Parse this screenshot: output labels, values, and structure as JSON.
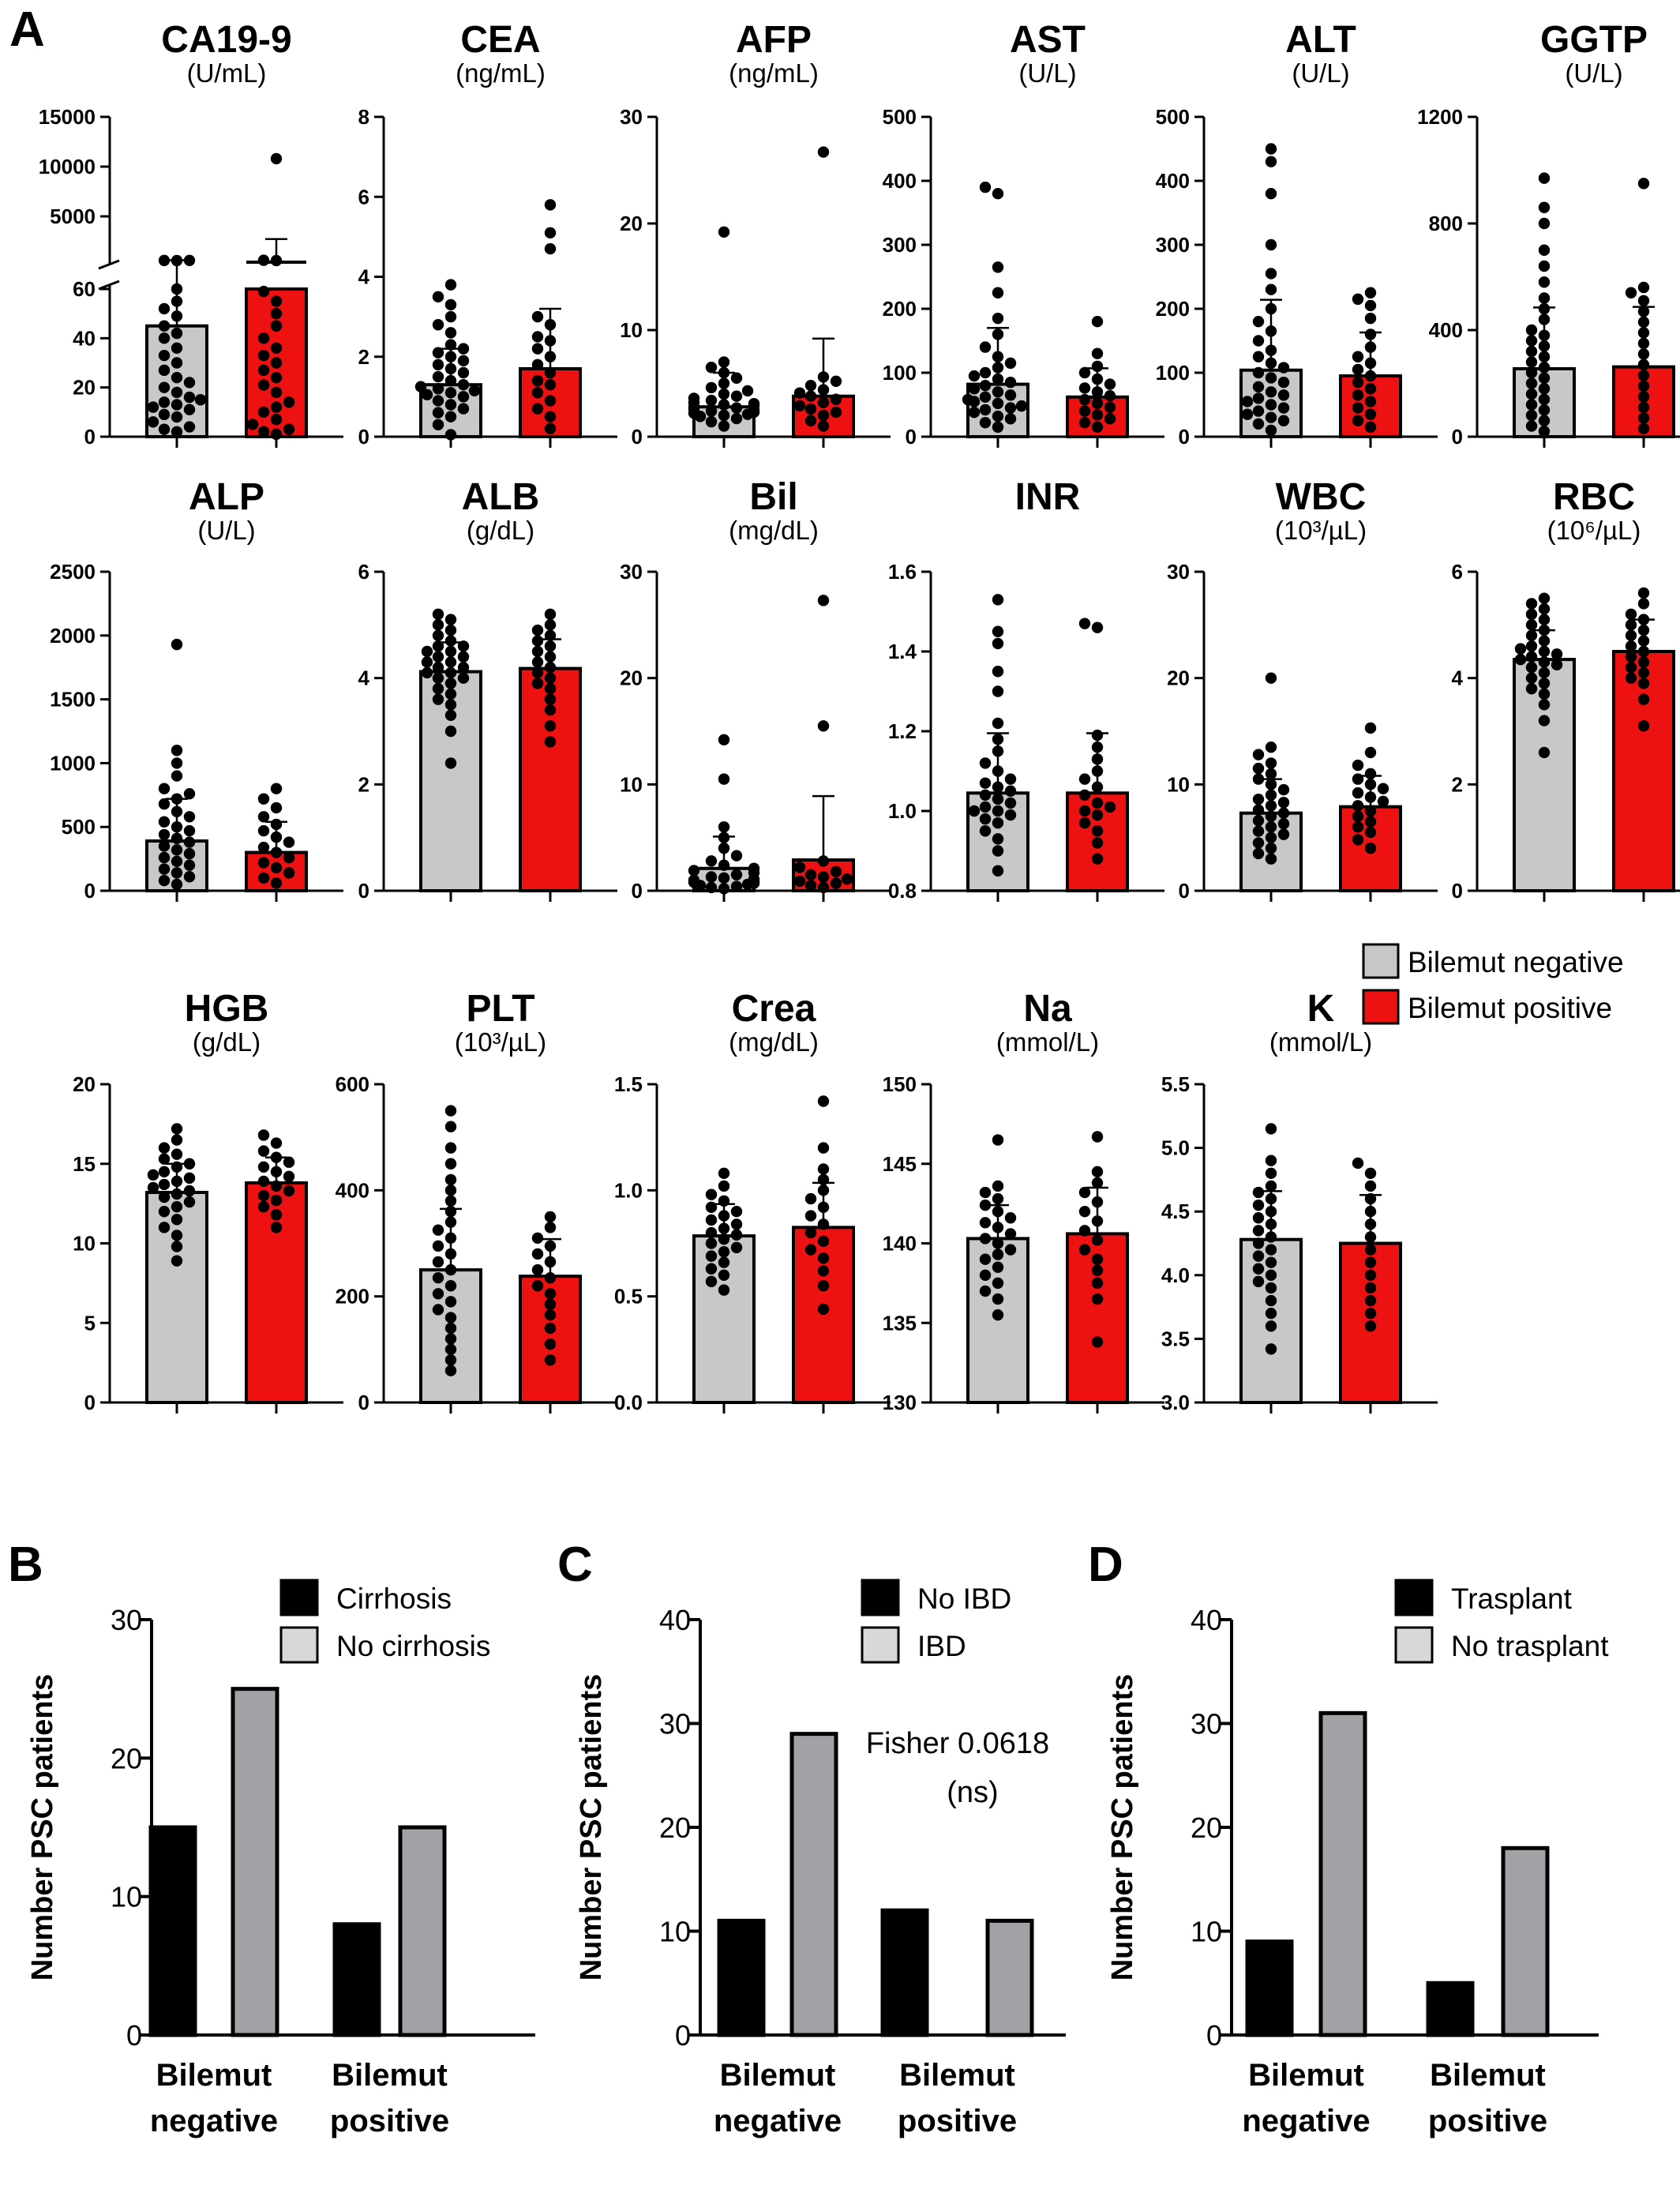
{
  "figure": {
    "panels": [
      "A",
      "B",
      "C",
      "D"
    ],
    "legend_a": [
      "Bilemut negative",
      "Bilemut positive"
    ],
    "colors": {
      "negative": "#c8c8c8",
      "positive": "#ee1111",
      "axis": "#000000",
      "dark_bar": "#000000",
      "light_bar": "#a2a2a6"
    }
  },
  "chart_data": [
    {
      "type": "bar",
      "title": "CA19-9",
      "unit": "(U/mL)",
      "categories": [
        "Bilemut negative",
        "Bilemut positive"
      ],
      "values": [
        45,
        60
      ],
      "error": [
        60,
        2400
      ],
      "axis_break": true,
      "lower_ylim": [
        0,
        60
      ],
      "lower_ticks": [
        "0",
        "20",
        "40",
        "60"
      ],
      "upper_ylim": [
        0,
        15000
      ],
      "upper_ticks": [
        "5000",
        "10000",
        "15000"
      ],
      "neg_points": [
        2,
        3,
        4,
        6,
        8,
        9,
        11,
        12,
        13,
        14,
        15,
        16,
        18,
        20,
        22,
        24,
        27,
        30,
        33,
        36,
        40,
        42,
        45,
        49,
        52,
        55,
        60,
        62,
        70,
        78
      ],
      "pos_points": [
        1,
        2,
        3,
        5,
        7,
        10,
        12,
        14,
        18,
        21,
        24,
        27,
        30,
        33,
        36,
        40,
        45,
        50,
        55,
        59,
        62,
        95,
        10800
      ]
    },
    {
      "type": "bar",
      "title": "CEA",
      "unit": "(ng/mL)",
      "categories": [
        "Bilemut negative",
        "Bilemut positive"
      ],
      "values": [
        1.3,
        1.7
      ],
      "error": [
        0.9,
        1.5
      ],
      "ylim": [
        0,
        8
      ],
      "ticks": [
        "0",
        "2",
        "4",
        "6",
        "8"
      ],
      "neg_points": [
        0.05,
        0.3,
        0.5,
        0.6,
        0.7,
        0.8,
        0.9,
        1.0,
        1.05,
        1.1,
        1.15,
        1.2,
        1.25,
        1.3,
        1.4,
        1.5,
        1.6,
        1.7,
        1.8,
        1.9,
        2.0,
        2.1,
        2.2,
        2.3,
        2.6,
        2.8,
        3.0,
        3.3,
        3.5,
        3.8
      ],
      "neg_spread": [
        0
      ],
      "pos_points": [
        0.2,
        0.5,
        0.7,
        0.9,
        1.1,
        1.3,
        1.4,
        1.6,
        1.8,
        2.0,
        2.2,
        2.4,
        2.5,
        2.8,
        3.0,
        4.7,
        5.1,
        5.8
      ]
    },
    {
      "type": "bar",
      "title": "AFP",
      "unit": "(ng/mL)",
      "categories": [
        "Bilemut negative",
        "Bilemut positive"
      ],
      "values": [
        2.8,
        3.8
      ],
      "error": [
        3.2,
        5.4
      ],
      "ylim": [
        0,
        30
      ],
      "ticks": [
        "0",
        "10",
        "20",
        "30"
      ],
      "neg_points": [
        1.0,
        1.4,
        1.7,
        1.9,
        2.0,
        2.1,
        2.2,
        2.3,
        2.4,
        2.5,
        2.6,
        2.7,
        2.8,
        2.9,
        3.0,
        3.1,
        3.2,
        3.4,
        3.6,
        3.8,
        4.0,
        4.3,
        4.6,
        5.0,
        5.5,
        6.0,
        6.5,
        7.0,
        19.2
      ],
      "pos_points": [
        1.0,
        1.5,
        2.0,
        2.3,
        2.6,
        2.9,
        3.2,
        3.5,
        3.8,
        4.1,
        4.4,
        4.8,
        5.2,
        5.6,
        26.7
      ]
    },
    {
      "type": "bar",
      "title": "AST",
      "unit": "(U/L)",
      "categories": [
        "Bilemut negative",
        "Bilemut positive"
      ],
      "values": [
        82,
        62
      ],
      "error": [
        88,
        45
      ],
      "ylim": [
        0,
        500
      ],
      "ticks": [
        "0",
        "100",
        "200",
        "300",
        "400",
        "500"
      ],
      "neg_points": [
        15,
        22,
        28,
        32,
        38,
        42,
        45,
        48,
        52,
        55,
        58,
        62,
        65,
        70,
        75,
        80,
        85,
        90,
        95,
        100,
        108,
        115,
        125,
        140,
        160,
        185,
        225,
        265,
        380,
        390
      ],
      "pos_points": [
        15,
        22,
        28,
        34,
        40,
        46,
        52,
        58,
        64,
        70,
        76,
        82,
        90,
        100,
        110,
        130,
        180
      ]
    },
    {
      "type": "bar",
      "title": "ALT",
      "unit": "(U/L)",
      "categories": [
        "Bilemut negative",
        "Bilemut positive"
      ],
      "values": [
        104,
        95
      ],
      "error": [
        110,
        68
      ],
      "ylim": [
        0,
        500
      ],
      "ticks": [
        "0",
        "100",
        "200",
        "300",
        "400",
        "500"
      ],
      "neg_points": [
        10,
        20,
        25,
        30,
        35,
        40,
        45,
        50,
        55,
        60,
        65,
        70,
        78,
        85,
        92,
        100,
        108,
        115,
        125,
        135,
        150,
        165,
        180,
        200,
        230,
        255,
        300,
        380,
        430,
        450
      ],
      "pos_points": [
        15,
        25,
        35,
        45,
        55,
        65,
        75,
        85,
        95,
        105,
        115,
        125,
        140,
        160,
        185,
        205,
        215,
        225
      ]
    },
    {
      "type": "bar",
      "title": "GGTP",
      "unit": "(U/L)",
      "categories": [
        "Bilemut negative",
        "Bilemut positive"
      ],
      "values": [
        255,
        262
      ],
      "error": [
        230,
        225
      ],
      "ylim": [
        0,
        1200
      ],
      "ticks": [
        "0",
        "400",
        "800",
        "1200"
      ],
      "neg_points": [
        20,
        40,
        60,
        80,
        100,
        120,
        140,
        160,
        180,
        200,
        220,
        240,
        260,
        280,
        300,
        320,
        340,
        360,
        380,
        400,
        440,
        480,
        520,
        580,
        640,
        700,
        800,
        860,
        970
      ],
      "pos_points": [
        30,
        70,
        110,
        150,
        190,
        230,
        270,
        310,
        350,
        390,
        430,
        470,
        510,
        540,
        560,
        950
      ]
    },
    {
      "type": "bar",
      "title": "ALP",
      "unit": "(U/L)",
      "categories": [
        "Bilemut negative",
        "Bilemut positive"
      ],
      "values": [
        390,
        300
      ],
      "error": [
        330,
        240
      ],
      "ylim": [
        0,
        2500
      ],
      "ticks": [
        "0",
        "500",
        "1000",
        "1500",
        "2000",
        "2500"
      ],
      "neg_points": [
        50,
        80,
        110,
        140,
        170,
        200,
        230,
        260,
        290,
        320,
        350,
        380,
        410,
        440,
        470,
        500,
        540,
        580,
        620,
        680,
        720,
        760,
        800,
        900,
        1000,
        1100,
        1930
      ],
      "pos_points": [
        60,
        100,
        140,
        180,
        220,
        260,
        300,
        340,
        380,
        420,
        470,
        520,
        580,
        650,
        720,
        800
      ]
    },
    {
      "type": "bar",
      "title": "ALB",
      "unit": "(g/dL)",
      "categories": [
        "Bilemut negative",
        "Bilemut positive"
      ],
      "values": [
        4.12,
        4.18
      ],
      "error": [
        0.55,
        0.55
      ],
      "ylim": [
        0,
        6
      ],
      "ticks": [
        "0",
        "2",
        "4",
        "6"
      ],
      "neg_points": [
        2.4,
        3.0,
        3.3,
        3.5,
        3.6,
        3.7,
        3.8,
        3.9,
        4.0,
        4.0,
        4.1,
        4.1,
        4.2,
        4.2,
        4.3,
        4.3,
        4.4,
        4.4,
        4.5,
        4.5,
        4.6,
        4.6,
        4.7,
        4.8,
        4.9,
        5.0,
        5.1,
        5.2
      ],
      "pos_points": [
        2.8,
        3.1,
        3.4,
        3.6,
        3.8,
        3.9,
        4.0,
        4.1,
        4.2,
        4.3,
        4.4,
        4.5,
        4.6,
        4.7,
        4.8,
        4.9,
        5.0,
        5.2
      ]
    },
    {
      "type": "bar",
      "title": "Bil",
      "unit": "(mg/dL)",
      "categories": [
        "Bilemut negative",
        "Bilemut positive"
      ],
      "values": [
        2.1,
        2.9
      ],
      "error": [
        3.0,
        6.0
      ],
      "ylim": [
        0,
        30
      ],
      "ticks": [
        "0",
        "10",
        "20",
        "30"
      ],
      "neg_points": [
        0.2,
        0.3,
        0.4,
        0.5,
        0.6,
        0.7,
        0.8,
        0.9,
        1.0,
        1.1,
        1.2,
        1.3,
        1.5,
        1.7,
        1.9,
        2.1,
        2.4,
        2.8,
        3.3,
        4.0,
        5.0,
        6.0,
        10.5,
        14.2
      ],
      "pos_points": [
        0.3,
        0.5,
        0.7,
        0.9,
        1.1,
        1.3,
        1.5,
        1.8,
        2.2,
        2.8,
        15.5,
        27.3
      ]
    },
    {
      "type": "bar",
      "title": "INR",
      "unit": "",
      "categories": [
        "Bilemut negative",
        "Bilemut positive"
      ],
      "values": [
        1.045,
        1.045
      ],
      "error": [
        0.15,
        0.15
      ],
      "ylim": [
        0.8,
        1.6
      ],
      "ticks": [
        "0.8",
        "1.0",
        "1.2",
        "1.4",
        "1.6"
      ],
      "neg_points": [
        0.85,
        0.9,
        0.93,
        0.95,
        0.97,
        0.98,
        0.99,
        1.0,
        1.0,
        1.01,
        1.02,
        1.03,
        1.04,
        1.05,
        1.06,
        1.07,
        1.08,
        1.1,
        1.12,
        1.15,
        1.18,
        1.22,
        1.3,
        1.35,
        1.42,
        1.45,
        1.53
      ],
      "pos_points": [
        0.88,
        0.92,
        0.95,
        0.97,
        0.99,
        1.0,
        1.01,
        1.02,
        1.04,
        1.06,
        1.08,
        1.1,
        1.13,
        1.16,
        1.19,
        1.46,
        1.47
      ]
    },
    {
      "type": "bar",
      "title": "WBC",
      "unit": "(10³/µL)",
      "categories": [
        "Bilemut negative",
        "Bilemut positive"
      ],
      "values": [
        7.3,
        7.9
      ],
      "error": [
        3.2,
        2.9
      ],
      "ylim": [
        0,
        30
      ],
      "ticks": [
        "0",
        "10",
        "20",
        "30"
      ],
      "neg_points": [
        3.0,
        3.5,
        4.0,
        4.5,
        5.0,
        5.3,
        5.6,
        6.0,
        6.3,
        6.6,
        7.0,
        7.3,
        7.6,
        8.0,
        8.3,
        8.6,
        9.0,
        9.5,
        10.0,
        10.5,
        11.0,
        11.5,
        12.0,
        12.8,
        13.5,
        20.0
      ],
      "pos_points": [
        4.0,
        4.8,
        5.5,
        6.0,
        6.5,
        7.0,
        7.5,
        8.0,
        8.4,
        8.8,
        9.2,
        9.6,
        10.0,
        10.5,
        11.0,
        11.8,
        13.0,
        15.3
      ]
    },
    {
      "type": "bar",
      "title": "RBC",
      "unit": "(10⁶/µL)",
      "categories": [
        "Bilemut negative",
        "Bilemut positive"
      ],
      "values": [
        4.35,
        4.5
      ],
      "error": [
        0.55,
        0.6
      ],
      "ylim": [
        0,
        6
      ],
      "ticks": [
        "0",
        "2",
        "4",
        "6"
      ],
      "neg_points": [
        2.6,
        3.2,
        3.5,
        3.7,
        3.8,
        3.9,
        4.0,
        4.1,
        4.2,
        4.25,
        4.3,
        4.35,
        4.4,
        4.45,
        4.5,
        4.55,
        4.6,
        4.7,
        4.8,
        4.9,
        5.0,
        5.1,
        5.2,
        5.3,
        5.4,
        5.5
      ],
      "pos_points": [
        3.1,
        3.6,
        3.9,
        4.0,
        4.1,
        4.2,
        4.3,
        4.4,
        4.5,
        4.6,
        4.7,
        4.8,
        4.9,
        5.0,
        5.1,
        5.2,
        5.4,
        5.6
      ]
    },
    {
      "type": "bar",
      "title": "HGB",
      "unit": "(g/dL)",
      "categories": [
        "Bilemut negative",
        "Bilemut positive"
      ],
      "values": [
        13.2,
        13.8
      ],
      "error": [
        1.8,
        1.6
      ],
      "ylim": [
        0,
        20
      ],
      "ticks": [
        "0",
        "5",
        "10",
        "15",
        "20"
      ],
      "neg_points": [
        8.9,
        9.8,
        10.5,
        11.0,
        11.5,
        12.0,
        12.3,
        12.6,
        12.9,
        13.1,
        13.3,
        13.5,
        13.7,
        13.9,
        14.1,
        14.3,
        14.5,
        14.8,
        15.0,
        15.3,
        15.6,
        16.0,
        16.5,
        17.2
      ],
      "pos_points": [
        11.0,
        11.8,
        12.3,
        12.7,
        13.0,
        13.3,
        13.6,
        13.9,
        14.2,
        14.5,
        14.8,
        15.1,
        15.4,
        15.8,
        16.3,
        16.8
      ]
    },
    {
      "type": "bar",
      "title": "PLT",
      "unit": "(10³/µL)",
      "categories": [
        "Bilemut negative",
        "Bilemut positive"
      ],
      "values": [
        250,
        238
      ],
      "error": [
        115,
        70
      ],
      "ylim": [
        0,
        600
      ],
      "ticks": [
        "0",
        "200",
        "400",
        "600"
      ],
      "neg_points": [
        60,
        80,
        100,
        120,
        140,
        160,
        175,
        190,
        205,
        220,
        235,
        250,
        265,
        280,
        295,
        310,
        325,
        340,
        360,
        380,
        400,
        420,
        450,
        480,
        520,
        550
      ],
      "pos_points": [
        80,
        110,
        140,
        165,
        185,
        205,
        220,
        235,
        250,
        265,
        280,
        295,
        310,
        330,
        350
      ]
    },
    {
      "type": "bar",
      "title": "Crea",
      "unit": "(mg/dL)",
      "categories": [
        "Bilemut negative",
        "Bilemut positive"
      ],
      "values": [
        0.785,
        0.825
      ],
      "error": [
        0.15,
        0.21
      ],
      "ylim": [
        0,
        1.5
      ],
      "ticks": [
        "0.0",
        "0.5",
        "1.0",
        "1.5"
      ],
      "neg_points": [
        0.53,
        0.57,
        0.6,
        0.63,
        0.66,
        0.69,
        0.71,
        0.73,
        0.75,
        0.77,
        0.79,
        0.8,
        0.82,
        0.84,
        0.86,
        0.88,
        0.9,
        0.92,
        0.95,
        0.98,
        1.02,
        1.08
      ],
      "pos_points": [
        0.44,
        0.55,
        0.62,
        0.68,
        0.72,
        0.76,
        0.8,
        0.84,
        0.88,
        0.92,
        0.96,
        1.0,
        1.05,
        1.1,
        1.2,
        1.42
      ]
    },
    {
      "type": "bar",
      "title": "Na",
      "unit": "(mmol/L)",
      "categories": [
        "Bilemut negative",
        "Bilemut positive"
      ],
      "values": [
        140.3,
        140.6
      ],
      "error": [
        2.1,
        2.9
      ],
      "ylim": [
        130,
        150
      ],
      "ticks": [
        "130",
        "135",
        "140",
        "145",
        "150"
      ],
      "neg_points": [
        135.5,
        136.5,
        137,
        137.5,
        138,
        138.5,
        139,
        139.3,
        139.6,
        140,
        140.3,
        140.6,
        141,
        141.3,
        141.6,
        142,
        142.4,
        142.8,
        143.2,
        143.6,
        146.5
      ],
      "pos_points": [
        133.8,
        136.5,
        137.5,
        138.3,
        139,
        139.6,
        140.2,
        140.8,
        141.4,
        142,
        142.6,
        143.2,
        143.8,
        144.5,
        146.7
      ]
    },
    {
      "type": "bar",
      "title": "K",
      "unit": "(mmol/L)",
      "categories": [
        "Bilemut negative",
        "Bilemut positive"
      ],
      "values": [
        4.28,
        4.25
      ],
      "error": [
        0.38,
        0.38
      ],
      "ylim": [
        3.0,
        5.5
      ],
      "ticks": [
        "3.0",
        "3.5",
        "4.0",
        "4.5",
        "5.0",
        "5.5"
      ],
      "neg_points": [
        3.42,
        3.6,
        3.7,
        3.8,
        3.9,
        3.95,
        4.0,
        4.05,
        4.1,
        4.15,
        4.2,
        4.25,
        4.3,
        4.35,
        4.4,
        4.45,
        4.5,
        4.55,
        4.6,
        4.65,
        4.7,
        4.8,
        4.9,
        5.15
      ],
      "pos_points": [
        3.6,
        3.7,
        3.8,
        3.9,
        4.0,
        4.1,
        4.2,
        4.3,
        4.4,
        4.5,
        4.6,
        4.7,
        4.8,
        4.88
      ]
    },
    {
      "type": "bar",
      "panel": "B",
      "ylabel": "Number PSC patients",
      "categories": [
        "Bilemut negative",
        "Bilemut positive"
      ],
      "ylim": [
        0,
        30
      ],
      "ticks": [
        "0",
        "10",
        "20",
        "30"
      ],
      "series": [
        {
          "name": "Cirrhosis",
          "values": [
            15,
            8
          ]
        },
        {
          "name": "No cirrhosis",
          "values": [
            25,
            15
          ]
        }
      ]
    },
    {
      "type": "bar",
      "panel": "C",
      "ylabel": "Number PSC patients",
      "categories": [
        "Bilemut negative",
        "Bilemut positive"
      ],
      "ylim": [
        0,
        40
      ],
      "ticks": [
        "0",
        "10",
        "20",
        "30",
        "40"
      ],
      "series": [
        {
          "name": "No IBD",
          "values": [
            11,
            12
          ]
        },
        {
          "name": "IBD",
          "values": [
            29,
            11
          ]
        }
      ],
      "annotation": [
        "Fisher 0.0618",
        "(ns)"
      ]
    },
    {
      "type": "bar",
      "panel": "D",
      "ylabel": "Number PSC patients",
      "categories": [
        "Bilemut negative",
        "Bilemut positive"
      ],
      "ylim": [
        0,
        40
      ],
      "ticks": [
        "0",
        "10",
        "20",
        "30",
        "40"
      ],
      "series": [
        {
          "name": "Trasplant",
          "values": [
            9,
            5
          ]
        },
        {
          "name": "No trasplant",
          "values": [
            31,
            18
          ]
        }
      ]
    }
  ]
}
